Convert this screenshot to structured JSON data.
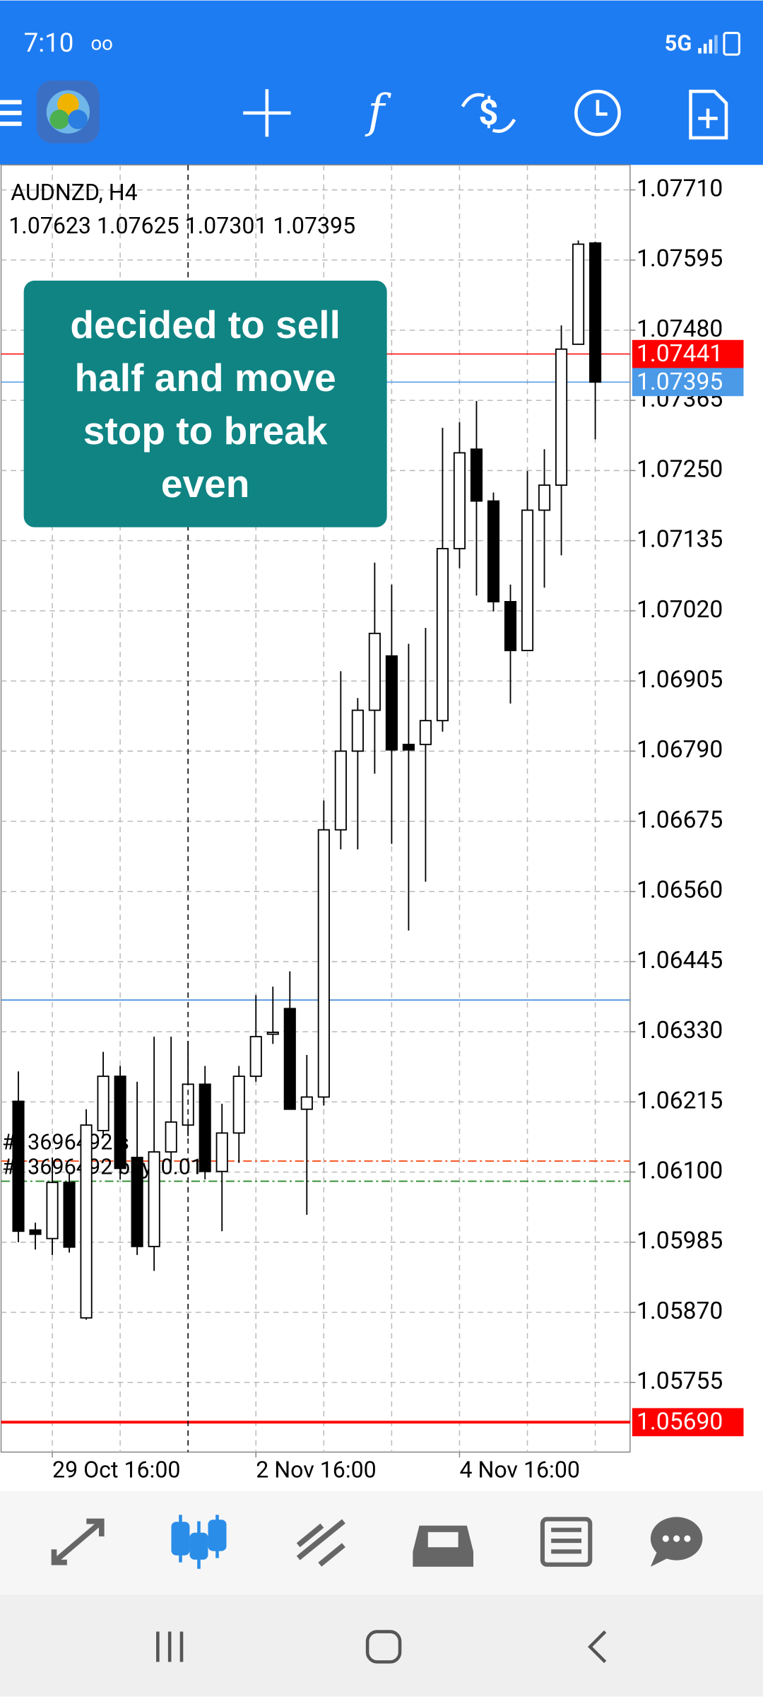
{
  "status_bar": {
    "time": "7:10",
    "network": "5G"
  },
  "chart_data": {
    "type": "candlestick",
    "symbol": "AUDNZD, H4",
    "categories": [
      null,
      null,
      "29 Oct 16:00",
      null,
      null,
      null,
      null,
      null,
      null,
      null,
      null,
      null,
      null,
      null,
      "2 Nov 16:00",
      null,
      null,
      null,
      null,
      null,
      null,
      null,
      null,
      null,
      null,
      null,
      "4 Nov 16:00",
      null,
      null,
      null,
      null,
      null,
      null,
      null,
      null
    ],
    "open": [
      1.06216,
      1.06005,
      1.05991,
      1.06083,
      1.05861,
      1.06168,
      1.06257,
      1.06124,
      1.05978,
      1.06133,
      1.06177,
      1.06244,
      1.06101,
      1.06164,
      1.06257,
      1.06326,
      1.06368,
      1.06203,
      1.06223,
      1.06661,
      1.0679,
      1.06857,
      1.06946,
      1.06801,
      1.06801,
      1.0684,
      1.07122,
      1.07285,
      1.072,
      1.07035,
      1.06955,
      1.07185,
      1.07226,
      1.07457,
      1.07623
    ],
    "high": [
      1.06265,
      1.06017,
      1.06124,
      1.06097,
      1.06203,
      1.06297,
      1.06274,
      1.06248,
      1.06322,
      1.06322,
      1.06315,
      1.06274,
      1.06212,
      1.06274,
      1.0639,
      1.06404,
      1.06429,
      1.06292,
      1.06709,
      1.06921,
      1.06877,
      1.07099,
      1.07063,
      1.06966,
      1.06992,
      1.0732,
      1.07329,
      1.07364,
      1.07214,
      1.07063,
      1.07249,
      1.07285,
      1.07488,
      1.07627,
      1.07625
    ],
    "low": [
      1.05985,
      1.05973,
      1.05964,
      1.05968,
      1.05858,
      1.06159,
      1.06088,
      1.05964,
      1.05938,
      1.06115,
      1.06159,
      1.06088,
      1.06003,
      1.06115,
      1.06248,
      1.0631,
      1.06203,
      1.0603,
      1.06209,
      1.06629,
      1.06629,
      1.06753,
      1.06638,
      1.06496,
      1.06576,
      1.06822,
      1.0709,
      1.07045,
      1.07019,
      1.06868,
      1.06955,
      1.07058,
      1.07111,
      1.07457,
      1.07301
    ],
    "close": [
      1.06003,
      1.05998,
      1.06083,
      1.05977,
      1.06177,
      1.06257,
      1.06106,
      1.05978,
      1.06133,
      1.06182,
      1.06244,
      1.06101,
      1.06164,
      1.06257,
      1.06322,
      1.06329,
      1.06203,
      1.06223,
      1.06661,
      1.0679,
      1.06857,
      1.06983,
      1.06792,
      1.06792,
      1.0684,
      1.07122,
      1.07279,
      1.072,
      1.07035,
      1.06955,
      1.07185,
      1.07226,
      1.07449,
      1.07621,
      1.07395
    ],
    "ylim": [
      1.05641,
      1.07751
    ],
    "yticks": [
      {
        "value": 1.0771,
        "label": "1.07710"
      },
      {
        "value": 1.07595,
        "label": "1.07595"
      },
      {
        "value": 1.0748,
        "label": "1.07480"
      },
      {
        "value": 1.07365,
        "label": "1.07365"
      },
      {
        "value": 1.0725,
        "label": "1.07250"
      },
      {
        "value": 1.07135,
        "label": "1.07135"
      },
      {
        "value": 1.0702,
        "label": "1.07020"
      },
      {
        "value": 1.06905,
        "label": "1.06905"
      },
      {
        "value": 1.0679,
        "label": "1.06790"
      },
      {
        "value": 1.06675,
        "label": "1.06675"
      },
      {
        "value": 1.0656,
        "label": "1.06560"
      },
      {
        "value": 1.06445,
        "label": "1.06445"
      },
      {
        "value": 1.0633,
        "label": "1.06330"
      },
      {
        "value": 1.06215,
        "label": "1.06215"
      },
      {
        "value": 1.061,
        "label": "1.06100"
      },
      {
        "value": 1.05985,
        "label": "1.05985"
      },
      {
        "value": 1.0587,
        "label": "1.05870"
      },
      {
        "value": 1.05755,
        "label": "1.05755"
      }
    ],
    "grid": true,
    "up_color": "#ffffff",
    "down_color": "#000000",
    "price_lines": [
      {
        "value": 1.07441,
        "color": "#ff0000"
      },
      {
        "value": 1.07395,
        "color": "#4a9ae8"
      },
      {
        "value": 1.06382,
        "color": "#3a86d6"
      },
      {
        "value": 1.0569,
        "value_label": "1.05690",
        "color": "#ff0000"
      }
    ],
    "orders": [
      {
        "name": "#13696492 s",
        "value": 1.06118,
        "color": "#f4511e"
      },
      {
        "name": "#13696492 buy, 0.01",
        "value": 1.06085,
        "color": "#2e8b2e"
      }
    ],
    "annotation": "decided to sell half and move stop to break even"
  }
}
